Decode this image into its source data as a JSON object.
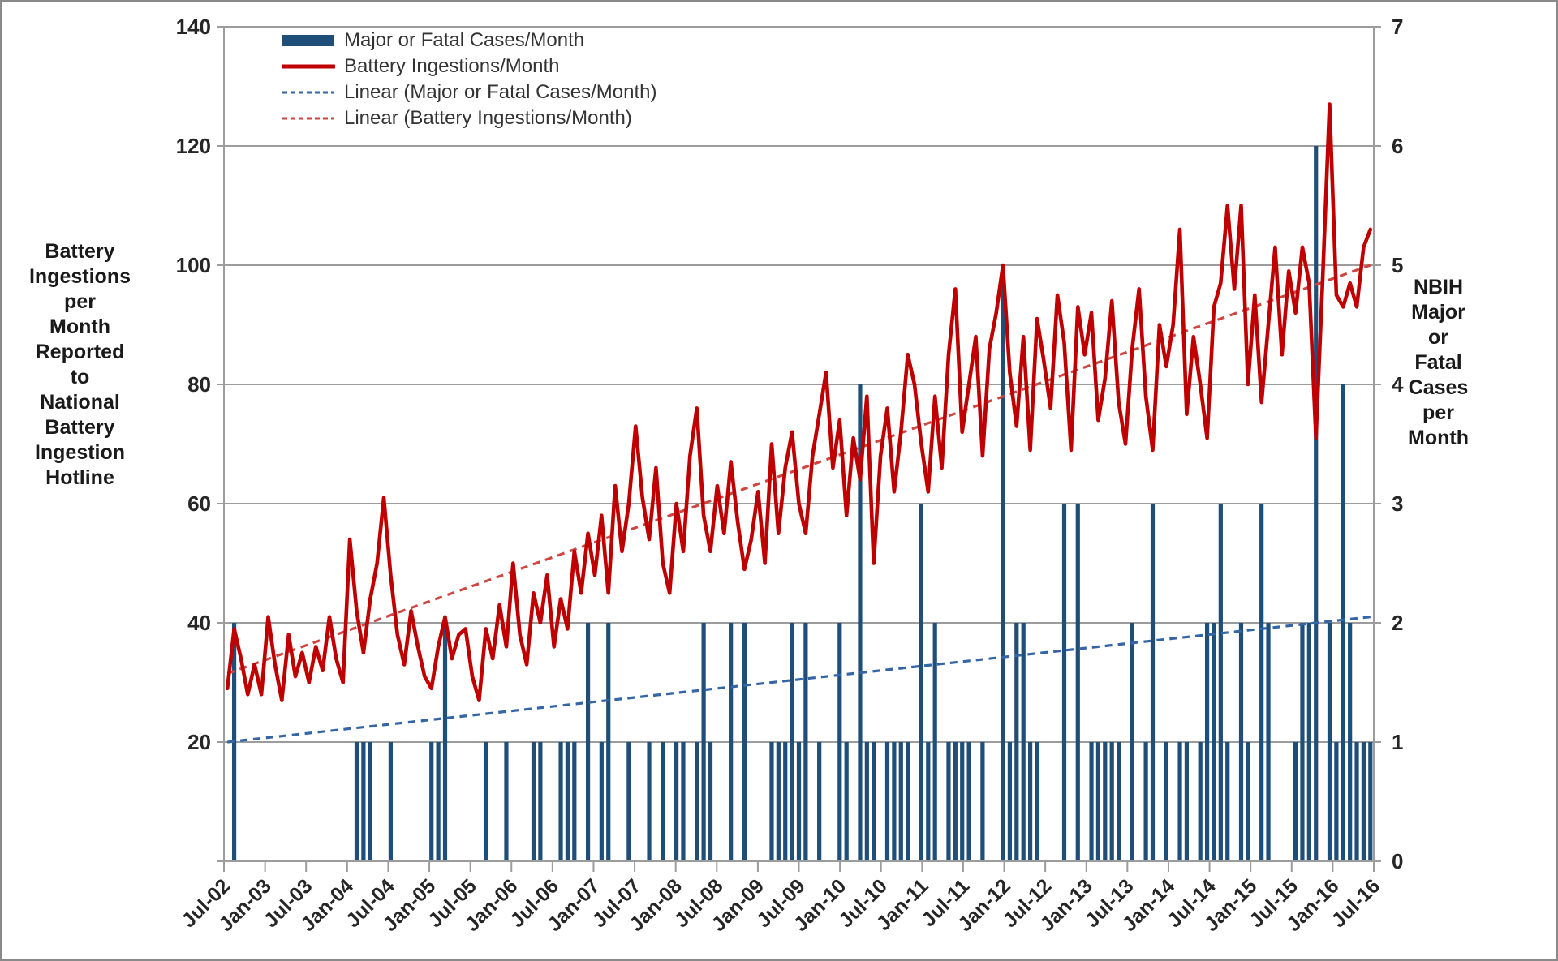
{
  "chart_data": {
    "type": "combo-bar-line",
    "title": "",
    "start_month": "Jul-02",
    "end_month": "Jul-16",
    "months_count": 169,
    "x_tick_labels": [
      "Jul-02",
      "Jan-03",
      "Jul-03",
      "Jan-04",
      "Jul-04",
      "Jan-05",
      "Jul-05",
      "Jan-06",
      "Jul-06",
      "Jan-07",
      "Jul-07",
      "Jan-08",
      "Jul-08",
      "Jan-09",
      "Jul-09",
      "Jan-10",
      "Jul-10",
      "Jan-11",
      "Jul-11",
      "Jan-12",
      "Jul-12",
      "Jan-13",
      "Jul-13",
      "Jan-14",
      "Jul-14",
      "Jan-15",
      "Jul-15",
      "Jan-16",
      "Jul-16"
    ],
    "left_axis": {
      "label_lines": [
        "Battery",
        "Ingestions",
        "per",
        "Month",
        "Reported",
        "to",
        "National",
        "Battery",
        "Ingestion",
        "Hotline"
      ],
      "min": 0,
      "max": 140,
      "tick_step": 20,
      "tick_labels_shown": [
        "140",
        "120",
        "100",
        "80",
        "60",
        "40",
        "20"
      ]
    },
    "right_axis": {
      "label_lines": [
        "NBIH",
        "Major",
        "or",
        "Fatal",
        "Cases",
        "per",
        "Month"
      ],
      "min": 0,
      "max": 7,
      "tick_step": 1,
      "tick_labels_shown": [
        "7",
        "6",
        "5",
        "4",
        "3",
        "2",
        "1",
        "0"
      ]
    },
    "grid": "horizontal gridlines every 20 left-scale units (1 right-scale unit), grey",
    "legend": {
      "position": "top-left-inside",
      "entries": [
        {
          "label": "Major or Fatal Cases/Month",
          "swatch": "bar"
        },
        {
          "label": "Battery Ingestions/Month",
          "swatch": "line"
        },
        {
          "label": "Linear (Major or Fatal Cases/Month)",
          "swatch": "dash-blue"
        },
        {
          "label": "Linear (Battery Ingestions/Month)",
          "swatch": "dash-red"
        }
      ]
    },
    "series": [
      {
        "name": "Major or Fatal Cases/Month",
        "type": "bar",
        "axis": "right",
        "color": "#1F4E79",
        "values": [
          0,
          2,
          0,
          0,
          0,
          0,
          0,
          0,
          0,
          0,
          0,
          0,
          0,
          0,
          0,
          0,
          0,
          0,
          0,
          1,
          1,
          1,
          0,
          0,
          1,
          0,
          0,
          0,
          0,
          0,
          1,
          1,
          2,
          0,
          0,
          0,
          0,
          0,
          1,
          0,
          0,
          1,
          0,
          0,
          0,
          1,
          1,
          0,
          0,
          1,
          1,
          1,
          0,
          2,
          0,
          1,
          2,
          0,
          0,
          1,
          0,
          0,
          1,
          0,
          1,
          0,
          1,
          1,
          0,
          1,
          2,
          1,
          0,
          0,
          2,
          0,
          2,
          0,
          0,
          0,
          1,
          1,
          1,
          2,
          1,
          2,
          0,
          1,
          0,
          0,
          2,
          1,
          0,
          4,
          1,
          1,
          0,
          1,
          1,
          1,
          1,
          0,
          3,
          1,
          2,
          0,
          1,
          1,
          1,
          1,
          0,
          1,
          0,
          0,
          5,
          1,
          2,
          2,
          1,
          1,
          0,
          0,
          0,
          3,
          0,
          3,
          0,
          1,
          1,
          1,
          1,
          1,
          0,
          2,
          0,
          1,
          3,
          0,
          1,
          0,
          1,
          1,
          0,
          1,
          2,
          2,
          3,
          1,
          0,
          2,
          1,
          0,
          3,
          2,
          0,
          0,
          0,
          1,
          2,
          2,
          6,
          0,
          2,
          1,
          4,
          2,
          1,
          1,
          1
        ]
      },
      {
        "name": "Battery Ingestions/Month",
        "type": "line",
        "axis": "left",
        "color": "#C00000",
        "values": [
          29,
          39,
          34,
          28,
          33,
          28,
          41,
          33,
          27,
          38,
          31,
          35,
          30,
          36,
          32,
          41,
          34,
          30,
          54,
          42,
          35,
          44,
          50,
          61,
          48,
          38,
          33,
          42,
          36,
          31,
          29,
          36,
          41,
          34,
          38,
          39,
          31,
          27,
          39,
          34,
          43,
          36,
          50,
          38,
          33,
          45,
          40,
          48,
          36,
          44,
          39,
          52,
          45,
          55,
          48,
          58,
          45,
          63,
          52,
          60,
          73,
          61,
          54,
          66,
          50,
          45,
          60,
          52,
          68,
          76,
          58,
          52,
          63,
          55,
          67,
          57,
          49,
          54,
          62,
          50,
          70,
          55,
          66,
          72,
          60,
          55,
          68,
          75,
          82,
          66,
          74,
          58,
          71,
          64,
          78,
          50,
          68,
          76,
          62,
          72,
          85,
          80,
          70,
          62,
          78,
          66,
          85,
          96,
          72,
          80,
          88,
          68,
          86,
          92,
          100,
          82,
          73,
          88,
          69,
          91,
          84,
          76,
          95,
          87,
          69,
          93,
          85,
          92,
          74,
          81,
          94,
          77,
          70,
          86,
          96,
          78,
          69,
          90,
          83,
          90,
          106,
          75,
          88,
          80,
          71,
          93,
          97,
          110,
          96,
          110,
          80,
          95,
          77,
          90,
          103,
          85,
          99,
          92,
          103,
          97,
          71,
          98,
          127,
          95,
          93,
          97,
          93,
          103,
          106
        ]
      },
      {
        "name": "Linear (Major or Fatal Cases/Month)",
        "type": "linear-trend",
        "axis": "right",
        "color": "#3465A4",
        "dashed": true,
        "endpoints_right_scale": [
          1.0,
          2.05
        ],
        "endpoints_left_scale_equivalent": [
          20,
          41
        ]
      },
      {
        "name": "Linear (Battery Ingestions/Month)",
        "type": "linear-trend",
        "axis": "left",
        "color": "#CE4641",
        "dashed": true,
        "endpoints_left_scale": [
          31.5,
          100
        ]
      }
    ],
    "colors": {
      "bar_blue": "#1F4E79",
      "line_red": "#C00000",
      "trend_blue": "#3465A4",
      "trend_red": "#CE4641",
      "gridline_grey": "#9C9C9C",
      "text_dark": "#262626",
      "background": "#FFFFFF"
    }
  }
}
